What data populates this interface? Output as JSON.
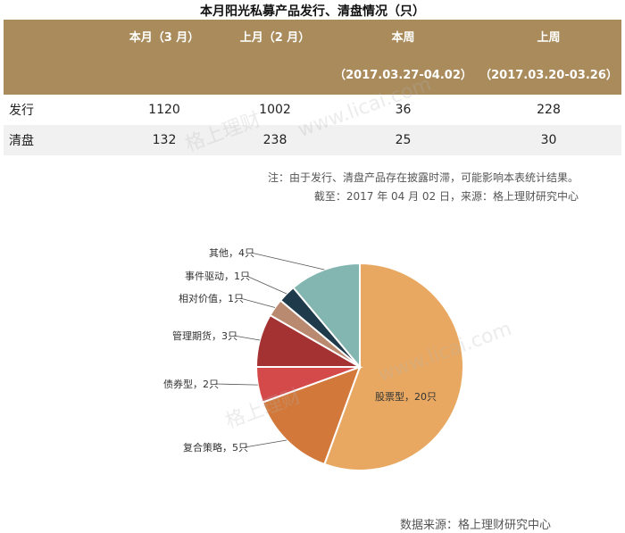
{
  "table": {
    "title": "本月阳光私募产品发行、清盘情况（只）",
    "headers": [
      {
        "line1": "",
        "line2": ""
      },
      {
        "line1": "本月（3 月）",
        "line2": ""
      },
      {
        "line1": "上月（2 月）",
        "line2": ""
      },
      {
        "line1": "本周",
        "line2": "（2017.03.27-04.02）"
      },
      {
        "line1": "上周",
        "line2": "（2017.03.20-03.26）"
      }
    ],
    "rows": [
      {
        "label": "发行",
        "values": [
          "1120",
          "1002",
          "36",
          "228"
        ]
      },
      {
        "label": "清盘",
        "values": [
          "132",
          "238",
          "25",
          "30"
        ]
      }
    ],
    "note1": "注：由于发行、清盘产品存在披露时滞，可能影响本表统计结果。",
    "note2": "截至：2017 年 04 月 02 日，来源：格上理财研究中心"
  },
  "chart_data": {
    "type": "pie",
    "slices": [
      {
        "label": "股票型，20只",
        "value": 20,
        "color": "#e8a861"
      },
      {
        "label": "复合策略，5只",
        "value": 5,
        "color": "#d2783a"
      },
      {
        "label": "债券型，2只",
        "value": 2,
        "color": "#d44a4a"
      },
      {
        "label": "管理期货，3只",
        "value": 3,
        "color": "#a43232"
      },
      {
        "label": "相对价值，1只",
        "value": 1,
        "color": "#b98a70"
      },
      {
        "label": "事件驱动，1只",
        "value": 1,
        "color": "#1f3a4a"
      },
      {
        "label": "其他，4只",
        "value": 4,
        "color": "#83b6b0"
      }
    ]
  },
  "watermarks": [
    "格上理财",
    "www.licai.com",
    "www.licai.com",
    "格上理财"
  ],
  "source": "数据来源：格上理财研究中心"
}
